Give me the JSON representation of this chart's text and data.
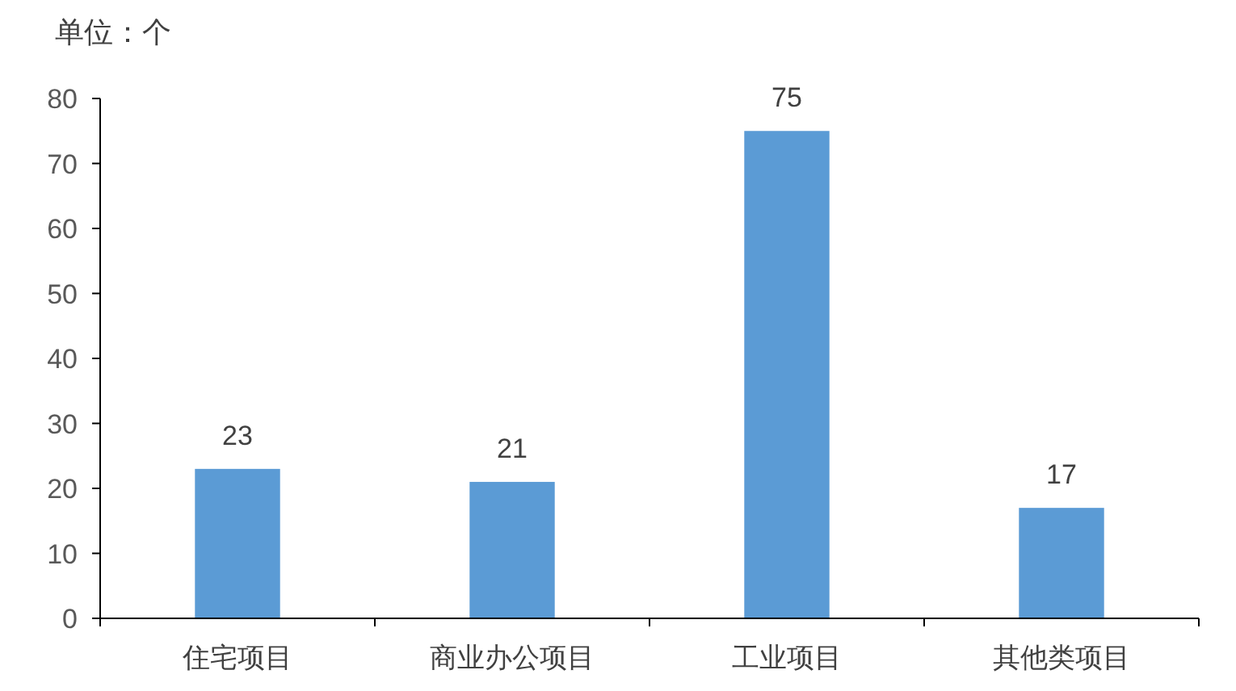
{
  "chart_data": {
    "type": "bar",
    "ylabel": "单位：个",
    "categories": [
      "住宅项目",
      "商业办公项目",
      "工业项目",
      "其他类项目"
    ],
    "values": [
      23,
      21,
      75,
      17
    ],
    "color": "#5b9bd5",
    "ylim": [
      0,
      80
    ],
    "yticks": [
      0,
      10,
      20,
      30,
      40,
      50,
      60,
      70,
      80
    ],
    "grid": false,
    "data_labels": true
  }
}
